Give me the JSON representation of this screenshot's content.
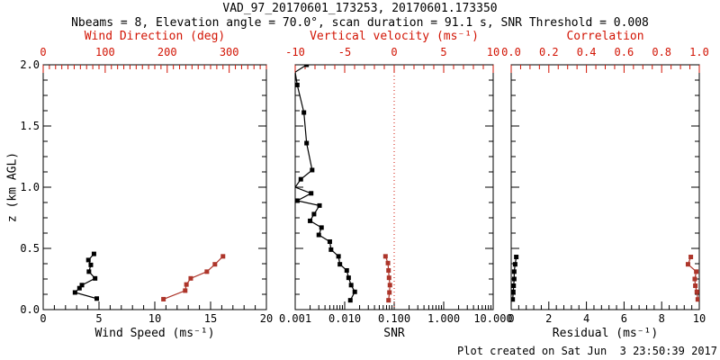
{
  "title": "VAD_97_20170601_173253, 20170601.173350",
  "subtitle": "Nbeams = 8, Elevation angle = 70.0°, scan duration = 91.1 s, SNR Threshold = 0.008",
  "footer": "Plot created on Sat Jun  3 23:50:39 2017",
  "colors": {
    "axis_red": "#d21404",
    "data_red": "#ad352a",
    "black": "#000000"
  },
  "y_axis": {
    "label": "z (km AGL)",
    "range": [
      0,
      2
    ],
    "ticks": [
      "2.0",
      "1.5",
      "1.0",
      "0.5",
      "0.0"
    ],
    "minor_step": 0.125
  },
  "chart_data": [
    {
      "type": "scatter",
      "bottom_axis": {
        "label": "Wind Speed (ms⁻¹)",
        "range": [
          0,
          20
        ],
        "ticks": [
          "0",
          "5",
          "10",
          "15",
          "20"
        ],
        "minor_step": 1
      },
      "top_axis": {
        "label": "Wind Direction (deg)",
        "range": [
          0,
          360
        ],
        "ticks": [
          "0",
          "100",
          "200",
          "300"
        ],
        "minor_step": 10
      },
      "series": [
        {
          "name": "wind_speed",
          "axis": "bottom",
          "color": "black",
          "points": [
            [
              4.8,
              0.09
            ],
            [
              2.85,
              0.14
            ],
            [
              3.25,
              0.175
            ],
            [
              3.47,
              0.2
            ],
            [
              4.65,
              0.255
            ],
            [
              4.1,
              0.31
            ],
            [
              4.27,
              0.365
            ],
            [
              4.05,
              0.405
            ],
            [
              4.55,
              0.455
            ]
          ]
        },
        {
          "name": "wind_direction",
          "axis": "top",
          "color": "red",
          "points": [
            [
              194,
              0.085
            ],
            [
              229,
              0.155
            ],
            [
              231,
              0.205
            ],
            [
              238,
              0.255
            ],
            [
              264,
              0.31
            ],
            [
              277,
              0.37
            ],
            [
              290,
              0.435
            ]
          ]
        }
      ]
    },
    {
      "type": "scatter",
      "bottom_axis": {
        "label": "SNR",
        "scale": "log",
        "range": [
          0.001,
          10
        ],
        "ticks": [
          "0.001",
          "0.010",
          "0.100",
          "1.000",
          "10.000"
        ]
      },
      "top_axis": {
        "label": "Vertical velocity (ms⁻¹)",
        "range": [
          -10,
          10
        ],
        "ticks": [
          "-10",
          "-5",
          "0",
          "5",
          "10"
        ],
        "minor_step": 1
      },
      "reference_line": {
        "axis": "top",
        "value": 0,
        "style": "dotted",
        "color": "red"
      },
      "series": [
        {
          "name": "snr",
          "axis": "bottom",
          "color": "black",
          "points": [
            [
              0.0017,
              2.0
            ],
            [
              0.001,
              1.94
            ],
            [
              0.0011,
              1.835
            ],
            [
              0.0015,
              1.61
            ],
            [
              0.0017,
              1.36
            ],
            [
              0.0022,
              1.14
            ],
            [
              0.0013,
              1.065
            ],
            [
              0.001,
              1.0
            ],
            [
              0.0021,
              0.95
            ],
            [
              0.0011,
              0.89
            ],
            [
              0.0031,
              0.85
            ],
            [
              0.0024,
              0.78
            ],
            [
              0.002,
              0.725
            ],
            [
              0.0034,
              0.67
            ],
            [
              0.003,
              0.61
            ],
            [
              0.005,
              0.555
            ],
            [
              0.0053,
              0.49
            ],
            [
              0.0075,
              0.435
            ],
            [
              0.008,
              0.37
            ],
            [
              0.011,
              0.32
            ],
            [
              0.012,
              0.26
            ],
            [
              0.0135,
              0.2
            ],
            [
              0.016,
              0.145
            ],
            [
              0.013,
              0.076
            ]
          ]
        },
        {
          "name": "vertical_velocity",
          "axis": "top",
          "color": "red",
          "points": [
            [
              -0.88,
              0.435
            ],
            [
              -0.63,
              0.38
            ],
            [
              -0.57,
              0.32
            ],
            [
              -0.52,
              0.26
            ],
            [
              -0.43,
              0.2
            ],
            [
              -0.48,
              0.14
            ],
            [
              -0.57,
              0.076
            ]
          ]
        }
      ]
    },
    {
      "type": "scatter",
      "bottom_axis": {
        "label": "Residual (ms⁻¹)",
        "range": [
          0,
          10
        ],
        "ticks": [
          "0",
          "2",
          "4",
          "6",
          "8",
          "10"
        ],
        "minor_step": 0.4
      },
      "top_axis": {
        "label": "Correlation",
        "range": [
          0,
          1
        ],
        "ticks": [
          "0.0",
          "0.2",
          "0.4",
          "0.6",
          "0.8",
          "1.0"
        ],
        "minor_step": 0.05
      },
      "series": [
        {
          "name": "residual",
          "axis": "bottom",
          "color": "black",
          "points": [
            [
              0.27,
              0.43
            ],
            [
              0.21,
              0.37
            ],
            [
              0.16,
              0.31
            ],
            [
              0.16,
              0.25
            ],
            [
              0.13,
              0.195
            ],
            [
              0.11,
              0.145
            ],
            [
              0.08,
              0.083
            ]
          ]
        },
        {
          "name": "correlation",
          "axis": "top",
          "color": "red",
          "points": [
            [
              0.955,
              0.43
            ],
            [
              0.94,
              0.37
            ],
            [
              0.984,
              0.31
            ],
            [
              0.976,
              0.25
            ],
            [
              0.979,
              0.195
            ],
            [
              0.987,
              0.145
            ],
            [
              0.992,
              0.083
            ]
          ]
        }
      ]
    }
  ]
}
